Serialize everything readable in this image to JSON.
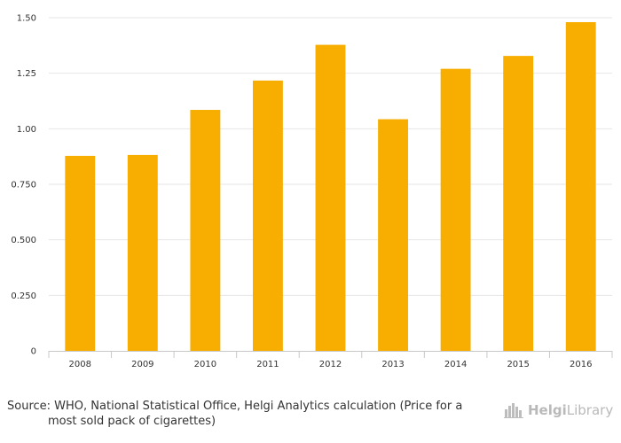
{
  "chart_data": {
    "type": "bar",
    "categories": [
      "2008",
      "2009",
      "2010",
      "2011",
      "2012",
      "2013",
      "2014",
      "2015",
      "2016"
    ],
    "values": [
      0.878,
      0.882,
      1.085,
      1.217,
      1.378,
      1.043,
      1.27,
      1.328,
      1.48
    ],
    "ylim": [
      0,
      1.5
    ],
    "yticks": [
      "0",
      "0.250",
      "0.500",
      "0.750",
      "1.00",
      "1.25",
      "1.50"
    ],
    "ytick_values": [
      0,
      0.25,
      0.5,
      0.75,
      1.0,
      1.25,
      1.5
    ],
    "bar_color": "#f7ae00",
    "grid": true,
    "legend": "none"
  },
  "footer": {
    "source_line1": "Source: WHO, National Statistical Office, Helgi Analytics calculation (Price for a",
    "source_line2": "most sold pack of cigarettes)"
  },
  "logo": {
    "icon": "city-skyline-icon",
    "text_bold": "Helgi",
    "text_regular": "Library"
  }
}
